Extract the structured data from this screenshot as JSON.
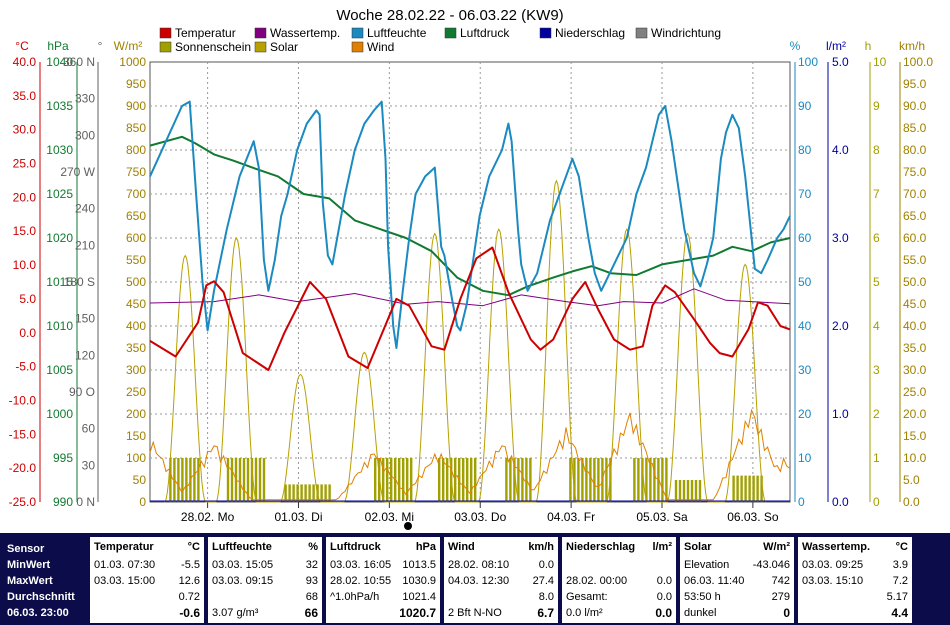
{
  "chart_data": {
    "type": "line",
    "title": "Woche 28.02.22 - 06.03.22 (KW9)",
    "x_labels": [
      "28.02.  Mo",
      "01.03.  Di",
      "02.03.  Mi",
      "03.03.  Do",
      "04.03.  Fr",
      "05.03.  Sa",
      "06.03.  So"
    ],
    "legend": [
      {
        "label": "Temperatur",
        "color": "#cc0000"
      },
      {
        "label": "Wassertemp.",
        "color": "#800080"
      },
      {
        "label": "Luftfeuchte",
        "color": "#1a8ac0"
      },
      {
        "label": "Luftdruck",
        "color": "#107a30"
      },
      {
        "label": "Niederschlag",
        "color": "#0000a0"
      },
      {
        "label": "Windrichtung",
        "color": "#808080"
      },
      {
        "label": "Sonnenschein",
        "color": "#a0a000"
      },
      {
        "label": "Solar",
        "color": "#b8a000"
      },
      {
        "label": "Wind",
        "color": "#e08000"
      }
    ],
    "axes": [
      {
        "unit": "°C",
        "color": "#cc0000",
        "ticks": [
          "40.0",
          "35.0",
          "30.0",
          "25.0",
          "20.0",
          "15.0",
          "10.0",
          "5.0",
          "0.0",
          "-5.0",
          "-10.0",
          "-15.0",
          "-20.0",
          "-25.0"
        ]
      },
      {
        "unit": "hPa",
        "color": "#107a30",
        "ticks": [
          "1040",
          "1035",
          "1030",
          "1025",
          "1020",
          "1015",
          "1010",
          "1005",
          "1000",
          "995",
          "990"
        ]
      },
      {
        "unit": "°",
        "color": "#606060",
        "ticks": [
          "360 N",
          "330",
          "300",
          "270 W",
          "240",
          "210",
          "180 S",
          "150",
          "120",
          "90 O",
          "60",
          "30",
          "0 N"
        ]
      },
      {
        "unit": "W/m²",
        "color": "#a08000",
        "ticks": [
          "1000",
          "950",
          "900",
          "850",
          "800",
          "750",
          "700",
          "650",
          "600",
          "550",
          "500",
          "450",
          "400",
          "350",
          "300",
          "250",
          "200",
          "150",
          "100",
          "50",
          "0"
        ]
      },
      {
        "unit": "%",
        "color": "#1a8ac0",
        "ticks": [
          "100",
          "90",
          "80",
          "70",
          "60",
          "50",
          "40",
          "30",
          "20",
          "10",
          "0"
        ]
      },
      {
        "unit": "l/m²",
        "color": "#0000a0",
        "ticks": [
          "5.0",
          "4.0",
          "3.0",
          "2.0",
          "1.0",
          "0.0"
        ]
      },
      {
        "unit": "h",
        "color": "#a0a000",
        "ticks": [
          "10",
          "9",
          "8",
          "7",
          "6",
          "5",
          "4",
          "3",
          "2",
          "1",
          "0"
        ]
      },
      {
        "unit": "km/h",
        "color": "#a08000",
        "ticks": [
          "100.0",
          "95.0",
          "90.0",
          "85.0",
          "80.0",
          "75.0",
          "70.0",
          "65.0",
          "60.0",
          "55.0",
          "50.0",
          "45.0",
          "40.0",
          "35.0",
          "30.0",
          "25.0",
          "20.0",
          "15.0",
          "10.0",
          "5.0",
          "0.0"
        ]
      }
    ],
    "series": [
      {
        "name": "Temperatur",
        "unit": "°C",
        "color": "#cc0000",
        "values": [
          [
            0,
            -1.2
          ],
          [
            0.4,
            -3.5
          ],
          [
            0.75,
            1.5
          ],
          [
            0.88,
            7.0
          ],
          [
            1.0,
            7.6
          ],
          [
            1.15,
            6.0
          ],
          [
            1.45,
            -3.0
          ],
          [
            1.85,
            -5.5
          ],
          [
            2.1,
            0.0
          ],
          [
            2.5,
            7.5
          ],
          [
            2.75,
            5.0
          ],
          [
            3.1,
            -3.5
          ],
          [
            3.4,
            -5.2
          ],
          [
            3.85,
            5.0
          ],
          [
            4.05,
            4.0
          ],
          [
            4.4,
            -2.0
          ],
          [
            4.6,
            -2.5
          ],
          [
            4.85,
            5.0
          ],
          [
            5.1,
            11.0
          ],
          [
            5.35,
            12.6
          ],
          [
            5.6,
            6.0
          ],
          [
            5.95,
            -1.0
          ],
          [
            6.1,
            -2.5
          ],
          [
            6.3,
            -1.0
          ],
          [
            6.6,
            5.0
          ],
          [
            6.8,
            7.5
          ],
          [
            7.0,
            3.5
          ],
          [
            7.25,
            -1.0
          ],
          [
            7.5,
            -2.5
          ],
          [
            7.7,
            -2.0
          ],
          [
            7.85,
            4.0
          ],
          [
            8.05,
            7.0
          ],
          [
            8.2,
            6.0
          ],
          [
            8.5,
            2.0
          ],
          [
            8.75,
            -1.5
          ],
          [
            8.9,
            -3.0
          ],
          [
            9.1,
            -3.5
          ],
          [
            9.35,
            0.5
          ],
          [
            9.5,
            4.5
          ],
          [
            9.65,
            4.0
          ],
          [
            9.85,
            1.0
          ],
          [
            10.0,
            0.5
          ]
        ]
      },
      {
        "name": "Wassertemp.",
        "unit": "°C",
        "color": "#800080",
        "values": [
          [
            0,
            4.4
          ],
          [
            1,
            4.6
          ],
          [
            1.7,
            5.6
          ],
          [
            2.3,
            4.6
          ],
          [
            3.2,
            5.8
          ],
          [
            4.0,
            4.2
          ],
          [
            4.5,
            4.6
          ],
          [
            5.2,
            4.0
          ],
          [
            5.8,
            5.6
          ],
          [
            6.5,
            4.6
          ],
          [
            7.0,
            4.0
          ],
          [
            7.4,
            4.6
          ],
          [
            8.0,
            4.4
          ],
          [
            8.5,
            6.5
          ],
          [
            9.0,
            4.8
          ],
          [
            10.0,
            4.3
          ]
        ]
      },
      {
        "name": "Luftfeuchte",
        "unit": "%",
        "color": "#1a8ac0",
        "values": [
          [
            0,
            74
          ],
          [
            0.25,
            82
          ],
          [
            0.5,
            90
          ],
          [
            0.62,
            91
          ],
          [
            0.72,
            70
          ],
          [
            0.82,
            50
          ],
          [
            0.9,
            39
          ],
          [
            1.0,
            48
          ],
          [
            1.2,
            62
          ],
          [
            1.4,
            74
          ],
          [
            1.62,
            82
          ],
          [
            1.7,
            76
          ],
          [
            1.78,
            55
          ],
          [
            1.85,
            48
          ],
          [
            1.95,
            55
          ],
          [
            2.05,
            65
          ],
          [
            2.15,
            70
          ],
          [
            2.3,
            80
          ],
          [
            2.45,
            86
          ],
          [
            2.6,
            89
          ],
          [
            2.65,
            88
          ],
          [
            2.7,
            68
          ],
          [
            2.78,
            56
          ],
          [
            2.85,
            54
          ],
          [
            2.95,
            62
          ],
          [
            3.05,
            70
          ],
          [
            3.2,
            80
          ],
          [
            3.35,
            86
          ],
          [
            3.5,
            89
          ],
          [
            3.62,
            91
          ],
          [
            3.68,
            78
          ],
          [
            3.72,
            58
          ],
          [
            3.8,
            40
          ],
          [
            3.85,
            35
          ],
          [
            3.95,
            48
          ],
          [
            4.05,
            60
          ],
          [
            4.15,
            70
          ],
          [
            4.3,
            74
          ],
          [
            4.45,
            76
          ],
          [
            4.55,
            58
          ],
          [
            4.6,
            56
          ],
          [
            4.72,
            46
          ],
          [
            4.8,
            40
          ],
          [
            4.85,
            39
          ],
          [
            4.95,
            45
          ],
          [
            5.05,
            55
          ],
          [
            5.15,
            65
          ],
          [
            5.3,
            74
          ],
          [
            5.5,
            80
          ],
          [
            5.6,
            86
          ],
          [
            5.65,
            82
          ],
          [
            5.75,
            62
          ],
          [
            5.8,
            54
          ],
          [
            5.9,
            48
          ],
          [
            6.05,
            52
          ],
          [
            6.25,
            64
          ],
          [
            6.45,
            72
          ],
          [
            6.6,
            78
          ],
          [
            6.7,
            74
          ],
          [
            6.85,
            60
          ],
          [
            6.95,
            52
          ],
          [
            7.05,
            48
          ],
          [
            7.25,
            54
          ],
          [
            7.45,
            60
          ],
          [
            7.6,
            70
          ],
          [
            7.75,
            76
          ],
          [
            7.85,
            82
          ],
          [
            7.95,
            88
          ],
          [
            8.05,
            90
          ],
          [
            8.15,
            82
          ],
          [
            8.25,
            72
          ],
          [
            8.35,
            62
          ],
          [
            8.5,
            52
          ],
          [
            8.6,
            49
          ],
          [
            8.7,
            54
          ],
          [
            8.8,
            60
          ],
          [
            8.92,
            78
          ],
          [
            9.0,
            84
          ],
          [
            9.1,
            88
          ],
          [
            9.2,
            85
          ],
          [
            9.3,
            74
          ],
          [
            9.4,
            60
          ],
          [
            9.45,
            53
          ],
          [
            9.55,
            52
          ],
          [
            9.65,
            55
          ],
          [
            9.8,
            60
          ],
          [
            9.9,
            62
          ],
          [
            10.0,
            65
          ]
        ]
      },
      {
        "name": "Luftdruck",
        "unit": "hPa",
        "color": "#107a30",
        "values": [
          [
            0,
            1030.5
          ],
          [
            0.5,
            1031.5
          ],
          [
            0.7,
            1030.8
          ],
          [
            1.0,
            1029.5
          ],
          [
            1.3,
            1028.8
          ],
          [
            1.6,
            1028.0
          ],
          [
            2.0,
            1027.0
          ],
          [
            2.4,
            1025.0
          ],
          [
            2.8,
            1024.5
          ],
          [
            3.2,
            1022.0
          ],
          [
            3.6,
            1021.0
          ],
          [
            4.0,
            1020.0
          ],
          [
            4.4,
            1018.5
          ],
          [
            4.8,
            1015.5
          ],
          [
            5.2,
            1014.0
          ],
          [
            5.6,
            1013.5
          ],
          [
            5.9,
            1014.5
          ],
          [
            6.3,
            1015.5
          ],
          [
            6.6,
            1016.2
          ],
          [
            6.9,
            1016.8
          ],
          [
            7.2,
            1016.0
          ],
          [
            7.6,
            1015.8
          ],
          [
            8.0,
            1017.0
          ],
          [
            8.4,
            1017.5
          ],
          [
            8.8,
            1018.0
          ],
          [
            9.1,
            1019.0
          ],
          [
            9.4,
            1018.5
          ],
          [
            9.7,
            1019.5
          ],
          [
            10.0,
            1020.0
          ]
        ]
      },
      {
        "name": "Solar",
        "unit": "W/m²",
        "color": "#b8a000",
        "peaks": [
          [
            0.55,
            560
          ],
          [
            1.35,
            600
          ],
          [
            2.35,
            290
          ],
          [
            3.35,
            340
          ],
          [
            4.45,
            610
          ],
          [
            5.45,
            620
          ],
          [
            6.35,
            730
          ],
          [
            7.45,
            620
          ],
          [
            8.4,
            610
          ],
          [
            9.3,
            540
          ]
        ]
      },
      {
        "name": "Wind",
        "unit": "km/h",
        "color": "#e08000",
        "peaks": [
          [
            0.0,
            15
          ],
          [
            1.0,
            14
          ],
          [
            3.5,
            12
          ],
          [
            4.5,
            12
          ],
          [
            5.5,
            14
          ],
          [
            6.5,
            17
          ],
          [
            7.5,
            21
          ],
          [
            9.4,
            22
          ],
          [
            9.9,
            10
          ]
        ]
      },
      {
        "name": "Sonnenschein",
        "unit": "h",
        "color": "#a0a000",
        "blocks": [
          [
            0.3,
            0.8,
            1.0
          ],
          [
            1.2,
            1.8,
            1.0
          ],
          [
            2.1,
            2.8,
            0.4
          ],
          [
            3.5,
            4.1,
            1.0
          ],
          [
            4.5,
            5.1,
            1.0
          ],
          [
            5.55,
            5.95,
            1.0
          ],
          [
            6.55,
            7.2,
            1.0
          ],
          [
            7.55,
            8.1,
            1.0
          ],
          [
            8.2,
            8.6,
            0.5
          ],
          [
            9.1,
            9.6,
            0.6
          ]
        ]
      }
    ]
  },
  "stats": {
    "sensor": {
      "header": "Sensor",
      "min": "MinWert",
      "max": "MaxWert",
      "avg": "Durchschnitt",
      "now": "06.03.  23:00"
    },
    "temperatur": {
      "header": "Temperatur",
      "unit": "°C",
      "min_time": "01.03.  07:30",
      "min": "-5.5",
      "max_time": "03.03.  15:00",
      "max": "12.6",
      "avg": "0.72",
      "now": "-0.6"
    },
    "luftfeuchte": {
      "header": "Luftfeuchte",
      "unit": "%",
      "min_time": "03.03.  15:05",
      "min": "32",
      "max_time": "03.03.  09:15",
      "max": "93",
      "avg": "68",
      "extra": "3.07 g/m³",
      "now": "66"
    },
    "luftdruck": {
      "header": "Luftdruck",
      "unit": "hPa",
      "min_time": "03.03.  16:05",
      "min": "1013.5",
      "max_time": "28.02.  10:55",
      "max": "1030.9",
      "trend": "^1.0hPa/h",
      "avg": "1021.4",
      "now": "1020.7"
    },
    "wind": {
      "header": "Wind",
      "unit": "km/h",
      "min_time": "28.02.  08:10",
      "min": "0.0",
      "max_time": "04.03.  12:30",
      "max": "27.4",
      "avg": "8.0",
      "dir": "2 Bft N-NO",
      "now": "6.7"
    },
    "niederschlag": {
      "header": "Niederschlag",
      "unit": "l/m²",
      "max_time": "28.02.  00:00",
      "max": "0.0",
      "total_label": "Gesamt:",
      "total": "0.0",
      "rate": "0.0 l/m²",
      "now": "0.0"
    },
    "solar": {
      "header": "Solar",
      "unit": "W/m²",
      "elev_label": "Elevation",
      "elev": "-43.046",
      "max_time": "06.03.  11:40",
      "max": "742",
      "duration": "53:50 h",
      "avg": "279",
      "state": "dunkel",
      "now": "0"
    },
    "wassertemp": {
      "header": "Wassertemp.",
      "unit": "°C",
      "min_time": "03.03.  09:25",
      "min": "3.9",
      "max_time": "03.03.  15:10",
      "max": "7.2",
      "avg": "5.17",
      "now": "4.4"
    }
  }
}
